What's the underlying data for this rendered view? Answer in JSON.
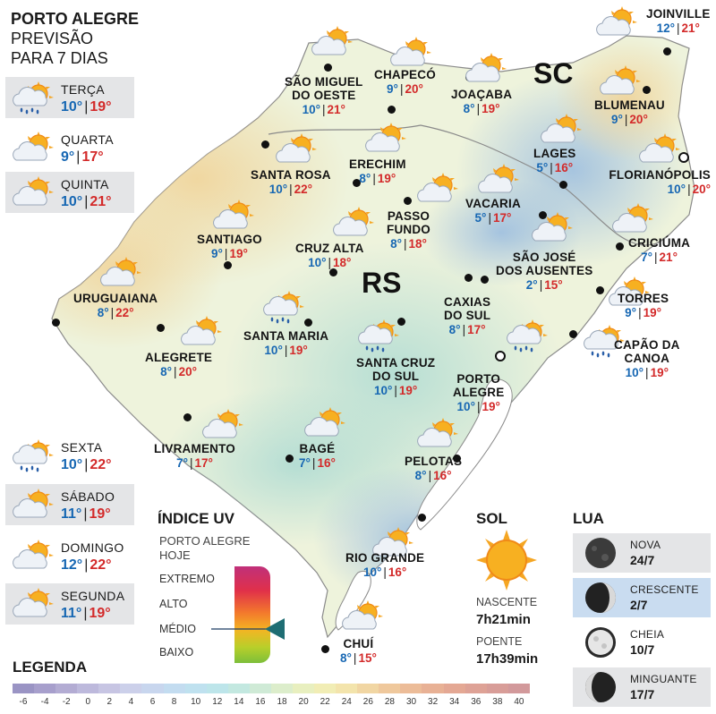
{
  "title": {
    "line1": "PORTO ALEGRE",
    "line2": "PREVISÃO",
    "line3": "PARA 7 DIAS"
  },
  "forecast": [
    {
      "day": "TERÇA",
      "min": "10°",
      "max": "19°",
      "icon": "sun-cloud-rain-icon"
    },
    {
      "day": "QUARTA",
      "min": "9°",
      "max": "17°",
      "icon": "sun-cloud-icon"
    },
    {
      "day": "QUINTA",
      "min": "10°",
      "max": "21°",
      "icon": "sun-cloud-icon"
    },
    {
      "day": "SEXTA",
      "min": "10°",
      "max": "22°",
      "icon": "sun-cloud-rain-icon"
    },
    {
      "day": "SÁBADO",
      "min": "11°",
      "max": "19°",
      "icon": "sun-cloud-icon"
    },
    {
      "day": "DOMINGO",
      "min": "12°",
      "max": "22°",
      "icon": "sun-cloud-icon"
    },
    {
      "day": "SEGUNDA",
      "min": "11°",
      "max": "19°",
      "icon": "sun-cloud-icon"
    }
  ],
  "states": {
    "rs": "RS",
    "sc": "SC"
  },
  "cities": [
    {
      "name": "JOINVILLE",
      "min": "12°",
      "max": "21°",
      "icon": "sun-cloud-icon"
    },
    {
      "name": "SÃO MIGUEL\nDO OESTE",
      "min": "10°",
      "max": "21°",
      "icon": "sun-cloud-icon"
    },
    {
      "name": "CHAPECÓ",
      "min": "9°",
      "max": "20°",
      "icon": "sun-cloud-icon"
    },
    {
      "name": "JOAÇABA",
      "min": "8°",
      "max": "19°",
      "icon": "sun-cloud-icon"
    },
    {
      "name": "BLUMENAU",
      "min": "9°",
      "max": "20°",
      "icon": "sun-cloud-icon"
    },
    {
      "name": "LAGES",
      "min": "5°",
      "max": "16°",
      "icon": "sun-cloud-icon"
    },
    {
      "name": "FLORIANÓPOLIS",
      "min": "10°",
      "max": "20°",
      "icon": "sun-cloud-icon"
    },
    {
      "name": "SANTA ROSA",
      "min": "10°",
      "max": "22°",
      "icon": "sun-cloud-icon"
    },
    {
      "name": "ERECHIM",
      "min": "8°",
      "max": "19°",
      "icon": "sun-cloud-icon"
    },
    {
      "name": "VACARIA",
      "min": "5°",
      "max": "17°",
      "icon": "sun-cloud-icon"
    },
    {
      "name": "PASSO\nFUNDO",
      "min": "8°",
      "max": "18°",
      "icon": "sun-cloud-icon"
    },
    {
      "name": "SANTIAGO",
      "min": "9°",
      "max": "19°",
      "icon": "sun-cloud-icon"
    },
    {
      "name": "CRUZ ALTA",
      "min": "10°",
      "max": "18°",
      "icon": "sun-cloud-icon"
    },
    {
      "name": "SÃO JOSÉ\nDOS AUSENTES",
      "min": "2°",
      "max": "15°",
      "icon": "sun-cloud-icon"
    },
    {
      "name": "CRICIÚMA",
      "min": "7°",
      "max": "21°",
      "icon": "sun-cloud-icon"
    },
    {
      "name": "URUGUAIANA",
      "min": "8°",
      "max": "22°",
      "icon": "sun-cloud-icon"
    },
    {
      "name": "TORRES",
      "min": "9°",
      "max": "19°",
      "icon": "sun-cloud-icon"
    },
    {
      "name": "CAXIAS\nDO SUL",
      "min": "8°",
      "max": "17°",
      "icon": "sun-cloud-icon"
    },
    {
      "name": "SANTA MARIA",
      "min": "10°",
      "max": "19°",
      "icon": "sun-cloud-rain-icon"
    },
    {
      "name": "ALEGRETE",
      "min": "8°",
      "max": "20°",
      "icon": "sun-cloud-icon"
    },
    {
      "name": "SANTA CRUZ\nDO SUL",
      "min": "10°",
      "max": "19°",
      "icon": "sun-cloud-rain-icon"
    },
    {
      "name": "PORTO\nALEGRE",
      "min": "10°",
      "max": "19°",
      "icon": "sun-cloud-rain-icon"
    },
    {
      "name": "CAPÃO DA\nCANOA",
      "min": "10°",
      "max": "19°",
      "icon": "sun-cloud-rain-icon"
    },
    {
      "name": "LIVRAMENTO",
      "min": "7°",
      "max": "17°",
      "icon": "sun-cloud-icon"
    },
    {
      "name": "BAGÉ",
      "min": "7°",
      "max": "16°",
      "icon": "sun-cloud-icon"
    },
    {
      "name": "PELOTAS",
      "min": "8°",
      "max": "16°",
      "icon": "sun-cloud-icon"
    },
    {
      "name": "RIO GRANDE",
      "min": "10°",
      "max": "16°",
      "icon": "sun-cloud-icon"
    },
    {
      "name": "CHUÍ",
      "min": "8°",
      "max": "15°",
      "icon": "sun-cloud-icon"
    }
  ],
  "uv": {
    "title": "ÍNDICE UV",
    "subtitle1": "PORTO ALEGRE",
    "subtitle2": "HOJE",
    "levels": [
      "EXTREMO",
      "ALTO",
      "MÉDIO",
      "BAIXO"
    ],
    "current_level": "MÉDIO"
  },
  "sun": {
    "title": "SOL",
    "sunrise_label": "NASCENTE",
    "sunrise": "7h21min",
    "sunset_label": "POENTE",
    "sunset": "17h39min",
    "icon": "sun-icon"
  },
  "moon": {
    "title": "LUA",
    "phases": [
      {
        "name": "NOVA",
        "date": "24/7",
        "icon": "moon-new-icon"
      },
      {
        "name": "CRESCENTE",
        "date": "2/7",
        "icon": "moon-crescent-icon",
        "highlight": true
      },
      {
        "name": "CHEIA",
        "date": "10/7",
        "icon": "moon-full-icon"
      },
      {
        "name": "MINGUANTE",
        "date": "17/7",
        "icon": "moon-waning-icon"
      }
    ]
  },
  "legend": {
    "title": "LEGENDA",
    "values": [
      "-6",
      "-4",
      "-2",
      "0",
      "2",
      "4",
      "6",
      "8",
      "10",
      "12",
      "14",
      "16",
      "18",
      "20",
      "22",
      "24",
      "26",
      "28",
      "30",
      "32",
      "34",
      "36",
      "38",
      "40"
    ],
    "colors": [
      "#9a94c4",
      "#a79fcc",
      "#b3acd3",
      "#bdb9dc",
      "#c7c5e3",
      "#ccd0ea",
      "#c8d6ee",
      "#c3dcf0",
      "#bfe1ef",
      "#bde5ea",
      "#c3e8e0",
      "#cfead6",
      "#dcedcb",
      "#e8efbf",
      "#f1edb5",
      "#f3e4ac",
      "#f1d6a3",
      "#efc89c",
      "#ecbc98",
      "#e8b195",
      "#e4a894",
      "#dea296",
      "#d89d98",
      "#d2999b"
    ]
  }
}
